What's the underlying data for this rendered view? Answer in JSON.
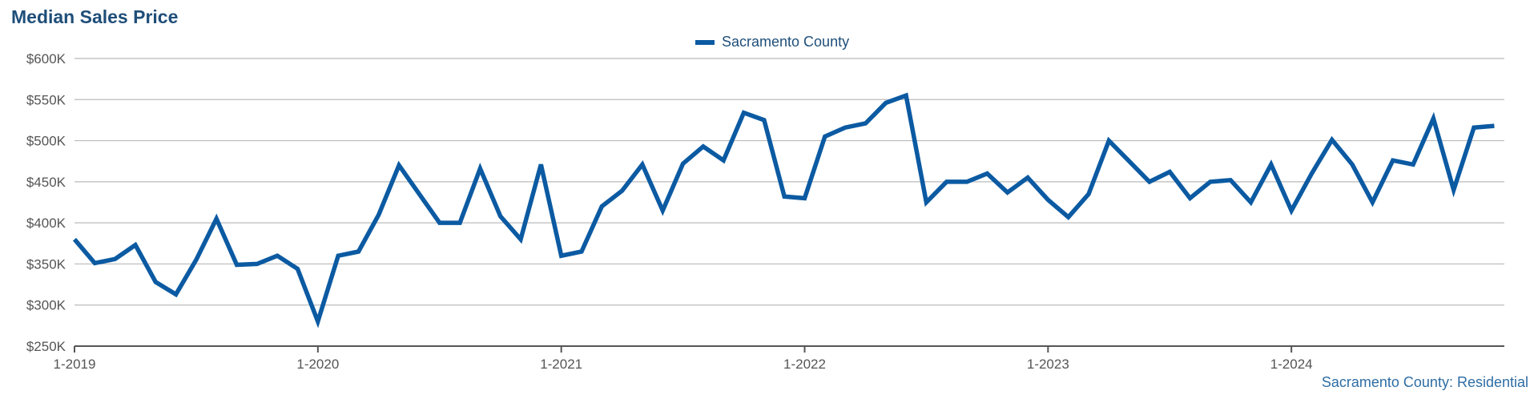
{
  "chart_data": {
    "type": "line",
    "title": "Median Sales Price",
    "subtitle": "",
    "xlabel": "",
    "ylabel": "",
    "source": "Sacramento County: Residential",
    "ylim": [
      250000,
      600000
    ],
    "yticks": [
      {
        "value": 600000,
        "label": "$600K"
      },
      {
        "value": 550000,
        "label": "$550K"
      },
      {
        "value": 500000,
        "label": "$500K"
      },
      {
        "value": 450000,
        "label": "$450K"
      },
      {
        "value": 400000,
        "label": "$400K"
      },
      {
        "value": 350000,
        "label": "$350K"
      },
      {
        "value": 300000,
        "label": "$300K"
      },
      {
        "value": 250000,
        "label": "$250K"
      }
    ],
    "xticks": [
      {
        "value": "2019-01",
        "label": "1-2019"
      },
      {
        "value": "2020-01",
        "label": "1-2020"
      },
      {
        "value": "2021-01",
        "label": "1-2021"
      },
      {
        "value": "2022-01",
        "label": "1-2022"
      },
      {
        "value": "2023-01",
        "label": "1-2023"
      },
      {
        "value": "2024-01",
        "label": "1-2024"
      }
    ],
    "xrange": [
      "2019-01",
      "2025-01"
    ],
    "grid": true,
    "legend_position": "top-center",
    "colors": {
      "series": "#0b5aa2",
      "grid": "#bbbbbb",
      "axis": "#555555",
      "title": "#1f4e79"
    },
    "series": [
      {
        "name": "Sacramento County",
        "x": [
          "2019-01",
          "2019-02",
          "2019-03",
          "2019-04",
          "2019-05",
          "2019-06",
          "2019-07",
          "2019-08",
          "2019-09",
          "2019-10",
          "2019-11",
          "2019-12",
          "2020-01",
          "2020-02",
          "2020-03",
          "2020-04",
          "2020-05",
          "2020-06",
          "2020-07",
          "2020-08",
          "2020-09",
          "2020-10",
          "2020-11",
          "2020-12",
          "2021-01",
          "2021-02",
          "2021-03",
          "2021-04",
          "2021-05",
          "2021-06",
          "2021-07",
          "2021-08",
          "2021-09",
          "2021-10",
          "2021-11",
          "2021-12",
          "2022-01",
          "2022-02",
          "2022-03",
          "2022-04",
          "2022-05",
          "2022-06",
          "2022-07",
          "2022-08",
          "2022-09",
          "2022-10",
          "2022-11",
          "2022-12",
          "2023-01",
          "2023-02",
          "2023-03",
          "2023-04",
          "2023-05",
          "2023-06",
          "2023-07",
          "2023-08",
          "2023-09",
          "2023-10",
          "2023-11",
          "2023-12",
          "2024-01",
          "2024-02",
          "2024-03",
          "2024-04",
          "2024-05",
          "2024-06",
          "2024-07",
          "2024-08",
          "2024-09",
          "2024-10",
          "2024-11"
        ],
        "values": [
          380000,
          351000,
          356000,
          373000,
          328000,
          313000,
          355000,
          405000,
          349000,
          350000,
          360000,
          344000,
          280000,
          360000,
          365000,
          410000,
          470000,
          435000,
          400000,
          400000,
          466000,
          408000,
          380000,
          471000,
          360000,
          365000,
          420000,
          439000,
          471000,
          415000,
          472000,
          493000,
          476000,
          534000,
          525000,
          432000,
          430000,
          505000,
          516000,
          521000,
          546000,
          555000,
          425000,
          450000,
          450000,
          460000,
          437000,
          455000,
          428000,
          407000,
          435000,
          500000,
          475000,
          450000,
          462000,
          430000,
          450000,
          452000,
          425000,
          471000,
          415000,
          460000,
          501000,
          471000,
          425000,
          476000,
          471000,
          527000,
          440000,
          516000,
          518000
        ]
      }
    ]
  },
  "legend": {
    "label": "Sacramento County"
  },
  "footer": {
    "source_label": "Sacramento County: Residential"
  }
}
